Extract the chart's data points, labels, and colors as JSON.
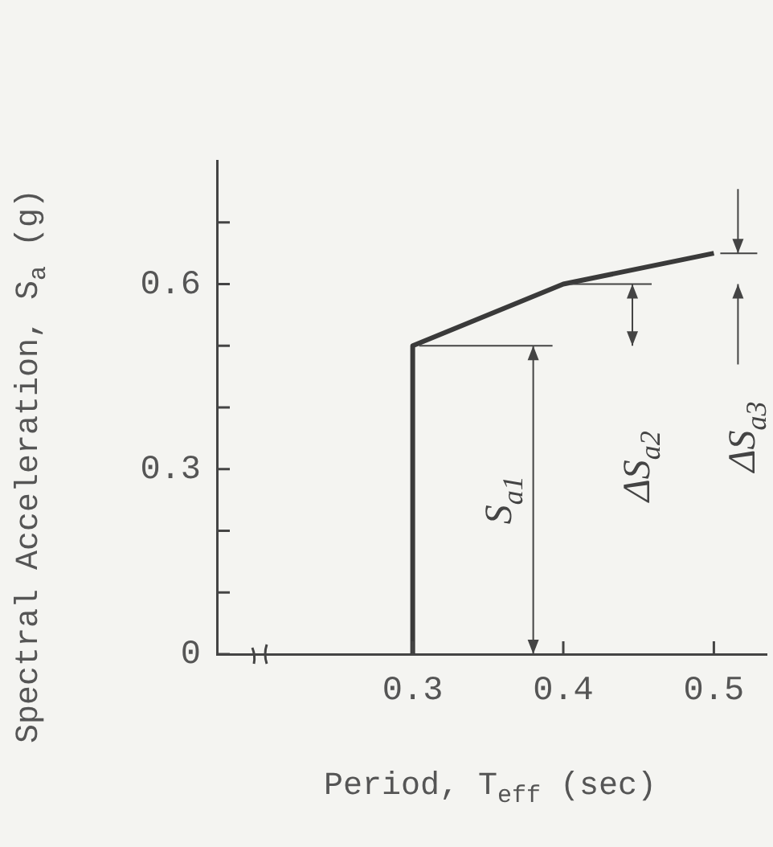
{
  "chart_data": {
    "type": "line",
    "xlabel": "Period, T$_{eff}$ (sec)",
    "ylabel": "Spectral Acceleration, S$_{a}$ (g)",
    "series": [
      {
        "x": [
          0.3,
          0.3,
          0.4,
          0.5
        ],
        "values": [
          0,
          0.5,
          0.6,
          0.65
        ],
        "color": "#3a3a3a"
      }
    ],
    "xlim": [
      0.17,
      0.535
    ],
    "xticks": [
      0.3,
      0.4,
      0.5
    ],
    "ylim": [
      0,
      0.8
    ],
    "yticks": [
      0,
      {
        "value": 0.1,
        "label": null
      },
      {
        "value": 0.2,
        "label": null
      },
      0.3,
      {
        "value": 0.4,
        "label": null
      },
      {
        "value": 0.5,
        "label": null
      },
      0.6,
      {
        "value": 0.7,
        "label": null
      }
    ],
    "annotations": [
      "S$_{a1}$",
      "ΔS$_{a2}$",
      "ΔS$_{a3}$"
    ],
    "grid": false,
    "legend": false,
    "marker": "none",
    "line_style": "solid"
  }
}
